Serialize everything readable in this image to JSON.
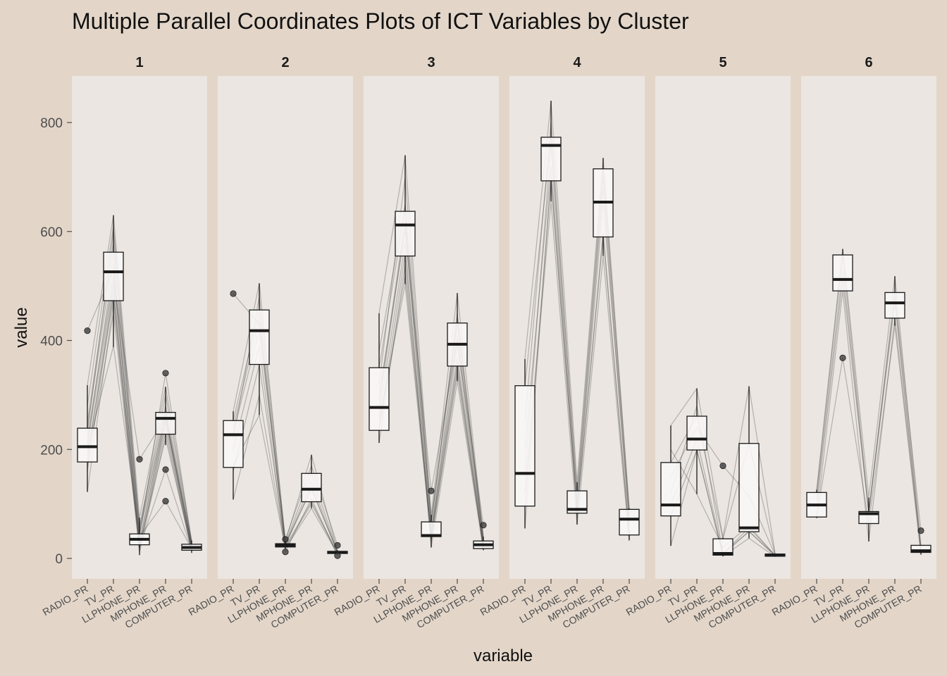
{
  "chart_data": {
    "type": "boxplot",
    "title": "Multiple Parallel Coordinates Plots of ICT Variables by Cluster",
    "xlabel": "variable",
    "ylabel": "value",
    "ylim": [
      -38,
      880
    ],
    "yticks": [
      0,
      200,
      400,
      600,
      800
    ],
    "variables": [
      "RADIO_PR",
      "TV_PR",
      "LLPHONE_PR",
      "MPHONE_PR",
      "COMPUTER_PR"
    ],
    "grid": false,
    "colors": {
      "background": "#E3D6C9",
      "panel": "#EBE6E1",
      "box_fill": "#FAF8F7",
      "stroke": "#1a1a1a",
      "line": "#333333"
    },
    "panels": [
      {
        "cluster": "1",
        "boxes": [
          {
            "variable": "RADIO_PR",
            "lower": 122,
            "q1": 177,
            "median": 205,
            "q3": 239,
            "upper": 318,
            "outliers": [
              418
            ]
          },
          {
            "variable": "TV_PR",
            "lower": 388,
            "q1": 473,
            "median": 526,
            "q3": 562,
            "upper": 630,
            "outliers": []
          },
          {
            "variable": "LLPHONE_PR",
            "lower": 6,
            "q1": 25,
            "median": 35,
            "q3": 45,
            "upper": 75,
            "outliers": [
              182
            ]
          },
          {
            "variable": "MPHONE_PR",
            "lower": 208,
            "q1": 228,
            "median": 257,
            "q3": 268,
            "upper": 315,
            "outliers": [
              340,
              163,
              105
            ]
          },
          {
            "variable": "COMPUTER_PR",
            "lower": 10,
            "q1": 15,
            "median": 20,
            "q3": 26,
            "upper": 33,
            "outliers": []
          }
        ],
        "lines": [
          [
            418,
            530,
            30,
            260,
            20
          ],
          [
            122,
            470,
            10,
            230,
            14
          ],
          [
            318,
            630,
            75,
            315,
            33
          ],
          [
            200,
            390,
            40,
            105,
            18
          ],
          [
            180,
            500,
            20,
            240,
            16
          ],
          [
            240,
            560,
            50,
            270,
            25
          ],
          [
            210,
            540,
            30,
            255,
            22
          ],
          [
            230,
            600,
            60,
            280,
            28
          ],
          [
            190,
            480,
            20,
            163,
            15
          ],
          [
            220,
            520,
            40,
            340,
            30
          ],
          [
            170,
            450,
            15,
            250,
            12
          ],
          [
            250,
            580,
            45,
            265,
            24
          ],
          [
            205,
            510,
            182,
            258,
            20
          ],
          [
            160,
            490,
            25,
            220,
            17
          ],
          [
            280,
            610,
            55,
            300,
            29
          ]
        ]
      },
      {
        "cluster": "2",
        "boxes": [
          {
            "variable": "RADIO_PR",
            "lower": 108,
            "q1": 167,
            "median": 227,
            "q3": 253,
            "upper": 270,
            "outliers": [
              486
            ]
          },
          {
            "variable": "TV_PR",
            "lower": 263,
            "q1": 356,
            "median": 418,
            "q3": 456,
            "upper": 505,
            "outliers": []
          },
          {
            "variable": "LLPHONE_PR",
            "lower": 18,
            "q1": 21,
            "median": 24,
            "q3": 27,
            "upper": 32,
            "outliers": [
              35,
              12
            ]
          },
          {
            "variable": "MPHONE_PR",
            "lower": 92,
            "q1": 104,
            "median": 127,
            "q3": 156,
            "upper": 190,
            "outliers": []
          },
          {
            "variable": "COMPUTER_PR",
            "lower": 8,
            "q1": 9,
            "median": 11,
            "q3": 13,
            "upper": 15,
            "outliers": [
              24,
              5
            ]
          }
        ],
        "lines": [
          [
            486,
            430,
            24,
            130,
            11
          ],
          [
            108,
            300,
            20,
            100,
            9
          ],
          [
            270,
            505,
            30,
            190,
            14
          ],
          [
            170,
            263,
            18,
            92,
            8
          ],
          [
            230,
            420,
            26,
            127,
            12
          ],
          [
            253,
            456,
            27,
            156,
            13
          ],
          [
            160,
            356,
            22,
            104,
            10
          ],
          [
            220,
            480,
            35,
            170,
            24
          ],
          [
            200,
            390,
            12,
            110,
            5
          ],
          [
            240,
            440,
            25,
            140,
            11
          ]
        ]
      },
      {
        "cluster": "3",
        "boxes": [
          {
            "variable": "RADIO_PR",
            "lower": 212,
            "q1": 235,
            "median": 277,
            "q3": 350,
            "upper": 450,
            "outliers": []
          },
          {
            "variable": "TV_PR",
            "lower": 503,
            "q1": 555,
            "median": 612,
            "q3": 637,
            "upper": 740,
            "outliers": []
          },
          {
            "variable": "LLPHONE_PR",
            "lower": 20,
            "q1": 40,
            "median": 42,
            "q3": 67,
            "upper": 80,
            "outliers": [
              124
            ]
          },
          {
            "variable": "MPHONE_PR",
            "lower": 325,
            "q1": 353,
            "median": 393,
            "q3": 432,
            "upper": 487,
            "outliers": []
          },
          {
            "variable": "COMPUTER_PR",
            "lower": 15,
            "q1": 18,
            "median": 25,
            "q3": 32,
            "upper": 40,
            "outliers": [
              61
            ]
          }
        ],
        "lines": [
          [
            212,
            540,
            30,
            350,
            18
          ],
          [
            450,
            740,
            80,
            487,
            40
          ],
          [
            277,
            612,
            42,
            393,
            25
          ],
          [
            235,
            560,
            40,
            360,
            20
          ],
          [
            350,
            640,
            67,
            430,
            32
          ],
          [
            300,
            600,
            124,
            400,
            61
          ],
          [
            260,
            580,
            20,
            325,
            15
          ],
          [
            320,
            700,
            60,
            450,
            35
          ],
          [
            240,
            520,
            45,
            370,
            22
          ],
          [
            290,
            620,
            50,
            410,
            28
          ],
          [
            380,
            650,
            70,
            440,
            36
          ],
          [
            250,
            503,
            35,
            340,
            19
          ]
        ]
      },
      {
        "cluster": "4",
        "boxes": [
          {
            "variable": "RADIO_PR",
            "lower": 55,
            "q1": 96,
            "median": 156,
            "q3": 317,
            "upper": 366,
            "outliers": []
          },
          {
            "variable": "TV_PR",
            "lower": 655,
            "q1": 693,
            "median": 758,
            "q3": 773,
            "upper": 840,
            "outliers": []
          },
          {
            "variable": "LLPHONE_PR",
            "lower": 62,
            "q1": 83,
            "median": 90,
            "q3": 124,
            "upper": 140,
            "outliers": []
          },
          {
            "variable": "MPHONE_PR",
            "lower": 555,
            "q1": 590,
            "median": 654,
            "q3": 715,
            "upper": 735,
            "outliers": []
          },
          {
            "variable": "COMPUTER_PR",
            "lower": 33,
            "q1": 43,
            "median": 72,
            "q3": 90,
            "upper": 92,
            "outliers": []
          }
        ],
        "lines": [
          [
            55,
            700,
            85,
            600,
            45
          ],
          [
            366,
            840,
            140,
            735,
            92
          ],
          [
            156,
            758,
            90,
            654,
            72
          ],
          [
            96,
            693,
            83,
            590,
            43
          ],
          [
            317,
            773,
            124,
            715,
            90
          ],
          [
            200,
            720,
            100,
            680,
            60
          ],
          [
            120,
            655,
            62,
            555,
            33
          ],
          [
            250,
            800,
            110,
            700,
            80
          ]
        ]
      },
      {
        "cluster": "5",
        "boxes": [
          {
            "variable": "RADIO_PR",
            "lower": 23,
            "q1": 78,
            "median": 98,
            "q3": 176,
            "upper": 244,
            "outliers": []
          },
          {
            "variable": "TV_PR",
            "lower": 118,
            "q1": 199,
            "median": 219,
            "q3": 261,
            "upper": 312,
            "outliers": []
          },
          {
            "variable": "LLPHONE_PR",
            "lower": 4,
            "q1": 6,
            "median": 9,
            "q3": 36,
            "upper": 38,
            "outliers": [
              170
            ]
          },
          {
            "variable": "MPHONE_PR",
            "lower": 37,
            "q1": 49,
            "median": 56,
            "q3": 211,
            "upper": 316,
            "outliers": []
          },
          {
            "variable": "COMPUTER_PR",
            "lower": 3,
            "q1": 4,
            "median": 6,
            "q3": 8,
            "upper": 9,
            "outliers": []
          }
        ],
        "lines": [
          [
            23,
            200,
            6,
            50,
            4
          ],
          [
            244,
            312,
            38,
            316,
            9
          ],
          [
            98,
            219,
            9,
            56,
            6
          ],
          [
            176,
            261,
            36,
            211,
            8
          ],
          [
            150,
            240,
            170,
            115,
            7
          ],
          [
            78,
            199,
            4,
            37,
            3
          ],
          [
            200,
            118,
            20,
            60,
            5
          ],
          [
            120,
            280,
            10,
            49,
            6
          ]
        ]
      },
      {
        "cluster": "6",
        "boxes": [
          {
            "variable": "RADIO_PR",
            "lower": 74,
            "q1": 76,
            "median": 98,
            "q3": 121,
            "upper": 126,
            "outliers": []
          },
          {
            "variable": "TV_PR",
            "lower": 491,
            "q1": 491,
            "median": 512,
            "q3": 557,
            "upper": 568,
            "outliers": [
              368
            ]
          },
          {
            "variable": "LLPHONE_PR",
            "lower": 31,
            "q1": 64,
            "median": 82,
            "q3": 86,
            "upper": 112,
            "outliers": []
          },
          {
            "variable": "MPHONE_PR",
            "lower": 427,
            "q1": 441,
            "median": 469,
            "q3": 488,
            "upper": 518,
            "outliers": []
          },
          {
            "variable": "COMPUTER_PR",
            "lower": 7,
            "q1": 11,
            "median": 14,
            "q3": 24,
            "upper": 24,
            "outliers": [
              51
            ]
          }
        ],
        "lines": [
          [
            74,
            491,
            31,
            441,
            11
          ],
          [
            126,
            568,
            112,
            518,
            24
          ],
          [
            98,
            512,
            82,
            469,
            14
          ],
          [
            121,
            557,
            86,
            488,
            51
          ],
          [
            76,
            368,
            64,
            427,
            7
          ],
          [
            110,
            530,
            84,
            480,
            20
          ]
        ]
      }
    ]
  }
}
